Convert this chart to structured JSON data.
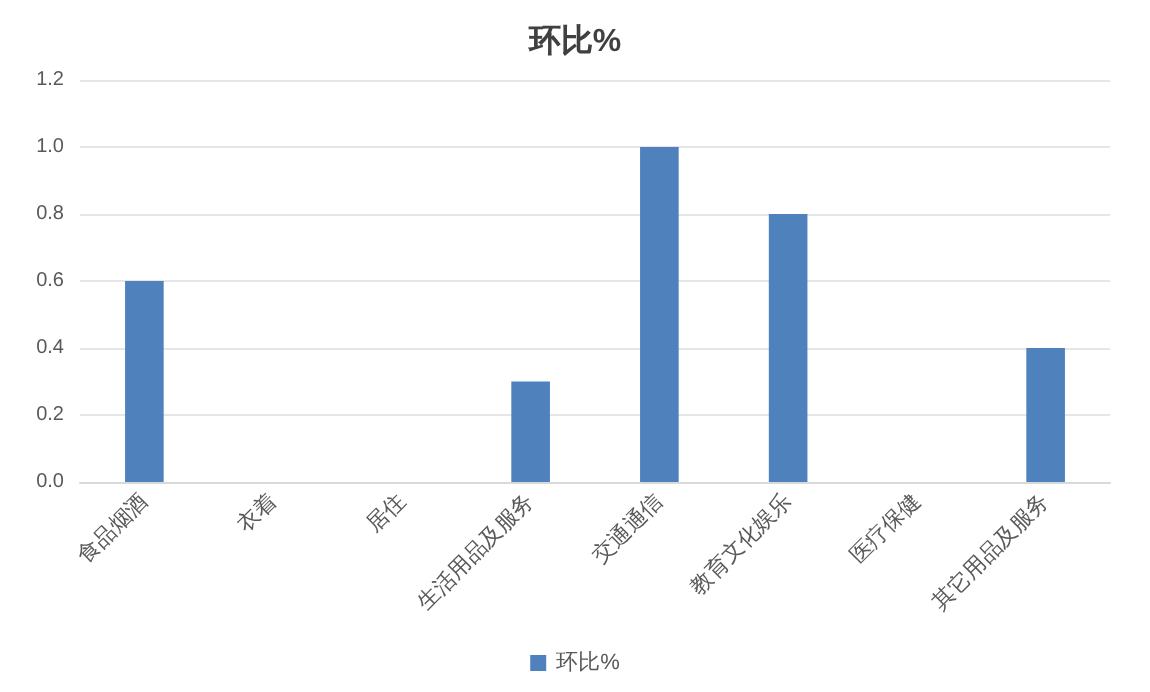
{
  "chart_data": {
    "type": "bar",
    "title": "环比%",
    "categories": [
      "食品烟酒",
      "衣着",
      "居住",
      "生活用品及服务",
      "交通通信",
      "教育文化娱乐",
      "医疗保健",
      "其它用品及服务"
    ],
    "series": [
      {
        "name": "环比%",
        "color": "#4f81bd",
        "values": [
          0.6,
          0,
          0,
          0.3,
          1.0,
          0.8,
          0,
          0.4
        ]
      }
    ],
    "ylim": [
      0,
      1.2
    ],
    "yticks": [
      {
        "value": 0,
        "label": "0.0"
      },
      {
        "value": 0.2,
        "label": "0.2"
      },
      {
        "value": 0.4,
        "label": "0.4"
      },
      {
        "value": 0.6,
        "label": "0.6"
      },
      {
        "value": 0.8,
        "label": "0.8"
      },
      {
        "value": 1.0,
        "label": "1.0"
      },
      {
        "value": 1.2,
        "label": "1.2"
      }
    ],
    "grid": "y",
    "legend": "bottom"
  }
}
